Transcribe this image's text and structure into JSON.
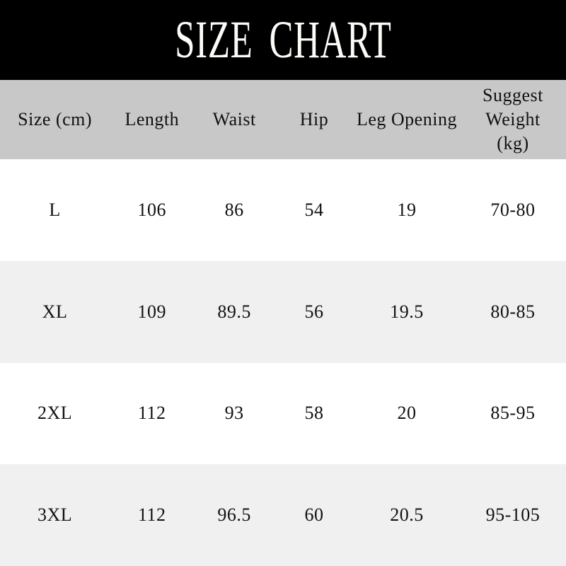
{
  "title": "SIZE CHART",
  "colors": {
    "banner_bg": "#000000",
    "banner_text": "#fbfbf8",
    "header_bg": "#c8c8c8",
    "row_bg": "#ffffff",
    "row_alt_bg": "#f0f0f0",
    "text": "#111111"
  },
  "header_labels": [
    "Size (cm)",
    "Length",
    "Waist",
    "Hip",
    "Leg Opening",
    "Suggest\nWeight\n(kg)"
  ],
  "chart_data": {
    "type": "table",
    "title": "SIZE CHART",
    "unit": "cm",
    "columns": [
      "Size (cm)",
      "Length",
      "Waist",
      "Hip",
      "Leg Opening",
      "Suggest Weight (kg)"
    ],
    "rows": [
      [
        "L",
        "106",
        "86",
        "54",
        "19",
        "70-80"
      ],
      [
        "XL",
        "109",
        "89.5",
        "56",
        "19.5",
        "80-85"
      ],
      [
        "2XL",
        "112",
        "93",
        "58",
        "20",
        "85-95"
      ],
      [
        "3XL",
        "112",
        "96.5",
        "60",
        "20.5",
        "95-105"
      ]
    ],
    "layout": {
      "banner_position": "top",
      "row_striping": [
        "white",
        "light-gray"
      ],
      "header_row_shaded": true
    }
  }
}
